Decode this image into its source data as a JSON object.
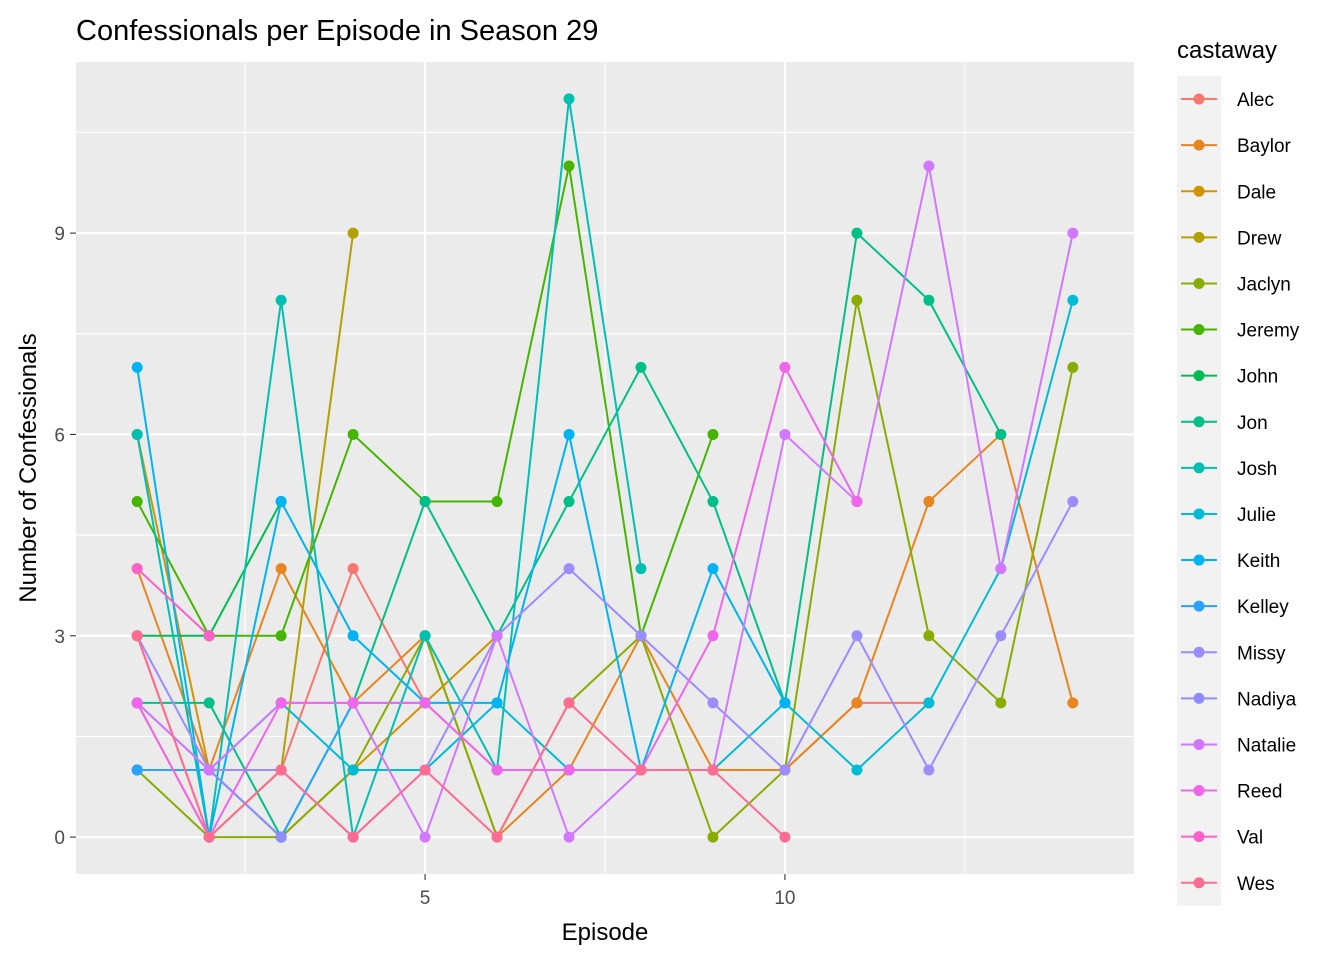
{
  "chart_data": {
    "type": "line",
    "title": "Confessionals per Episode in Season 29",
    "xlabel": "Episode",
    "ylabel": "Number of Confessionals",
    "xlim": [
      0.15,
      14.85
    ],
    "ylim": [
      -0.55,
      11.55
    ],
    "x_ticks": [
      5,
      10
    ],
    "y_ticks": [
      0,
      3,
      6,
      9
    ],
    "grid": true,
    "legend_title": "castaway",
    "legend_position": "right",
    "series": [
      {
        "name": "Alec",
        "color": "#F8766D",
        "points": [
          [
            1,
            3
          ],
          [
            2,
            0
          ],
          [
            3,
            1
          ],
          [
            4,
            4
          ],
          [
            5,
            2
          ],
          [
            6,
            1
          ],
          [
            7,
            1
          ],
          [
            8,
            1
          ],
          [
            9,
            1
          ],
          [
            10,
            1
          ],
          [
            11,
            2
          ],
          [
            12,
            2
          ]
        ]
      },
      {
        "name": "Baylor",
        "color": "#E7851E",
        "points": [
          [
            1,
            4
          ],
          [
            2,
            1
          ],
          [
            3,
            4
          ],
          [
            4,
            2
          ],
          [
            5,
            3
          ],
          [
            6,
            0
          ],
          [
            7,
            1
          ],
          [
            8,
            3
          ],
          [
            9,
            1
          ],
          [
            10,
            1
          ],
          [
            11,
            2
          ],
          [
            12,
            5
          ],
          [
            13,
            6
          ],
          [
            14,
            2
          ]
        ]
      },
      {
        "name": "Dale",
        "color": "#D09400",
        "points": [
          [
            1,
            6
          ],
          [
            2,
            1
          ],
          [
            3,
            0
          ],
          [
            4,
            1
          ],
          [
            5,
            2
          ],
          [
            6,
            3
          ]
        ]
      },
      {
        "name": "Drew",
        "color": "#B2A100",
        "points": [
          [
            1,
            2
          ],
          [
            2,
            0
          ],
          [
            3,
            1
          ],
          [
            4,
            9
          ]
        ]
      },
      {
        "name": "Jaclyn",
        "color": "#89AC00",
        "points": [
          [
            1,
            1
          ],
          [
            2,
            0
          ],
          [
            3,
            0
          ],
          [
            4,
            1
          ],
          [
            5,
            3
          ],
          [
            6,
            0
          ],
          [
            7,
            2
          ],
          [
            8,
            3
          ],
          [
            9,
            0
          ],
          [
            10,
            1
          ],
          [
            11,
            8
          ],
          [
            12,
            3
          ],
          [
            13,
            2
          ],
          [
            14,
            7
          ]
        ]
      },
      {
        "name": "Jeremy",
        "color": "#45B500",
        "points": [
          [
            1,
            5
          ],
          [
            2,
            3
          ],
          [
            3,
            3
          ],
          [
            4,
            6
          ],
          [
            5,
            5
          ],
          [
            6,
            5
          ],
          [
            7,
            10
          ],
          [
            8,
            3
          ],
          [
            9,
            6
          ]
        ]
      },
      {
        "name": "John",
        "color": "#00BC51",
        "points": [
          [
            1,
            3
          ],
          [
            2,
            3
          ],
          [
            3,
            5
          ]
        ]
      },
      {
        "name": "Jon",
        "color": "#00C087",
        "points": [
          [
            1,
            2
          ],
          [
            2,
            2
          ],
          [
            3,
            0
          ],
          [
            4,
            2
          ],
          [
            5,
            5
          ],
          [
            6,
            3
          ],
          [
            7,
            5
          ],
          [
            8,
            7
          ],
          [
            9,
            5
          ],
          [
            10,
            2
          ],
          [
            11,
            9
          ],
          [
            12,
            8
          ],
          [
            13,
            6
          ]
        ]
      },
      {
        "name": "Josh",
        "color": "#00C0B2",
        "points": [
          [
            1,
            6
          ],
          [
            2,
            0
          ],
          [
            3,
            8
          ],
          [
            4,
            0
          ],
          [
            5,
            3
          ],
          [
            6,
            1
          ],
          [
            7,
            11
          ],
          [
            8,
            4
          ]
        ]
      },
      {
        "name": "Julie",
        "color": "#00BCD6",
        "points": [
          [
            1,
            1
          ],
          [
            2,
            1
          ],
          [
            3,
            2
          ],
          [
            4,
            1
          ],
          [
            5,
            1
          ],
          [
            6,
            2
          ],
          [
            7,
            1
          ],
          [
            8,
            1
          ],
          [
            9,
            1
          ],
          [
            10,
            2
          ],
          [
            11,
            1
          ],
          [
            12,
            2
          ],
          [
            13,
            4
          ],
          [
            14,
            8
          ]
        ]
      },
      {
        "name": "Keith",
        "color": "#00B3F2",
        "points": [
          [
            1,
            7
          ],
          [
            2,
            0
          ],
          [
            3,
            5
          ],
          [
            4,
            3
          ],
          [
            5,
            2
          ],
          [
            6,
            2
          ],
          [
            7,
            6
          ],
          [
            8,
            1
          ],
          [
            9,
            4
          ],
          [
            10,
            2
          ]
        ]
      },
      {
        "name": "Kelley",
        "color": "#29A3FF",
        "points": [
          [
            1,
            1
          ],
          [
            2,
            1
          ],
          [
            3,
            0
          ],
          [
            4,
            2
          ],
          [
            5,
            2
          ]
        ]
      },
      {
        "name": "Missy",
        "color": "#9C8DFF",
        "points": [
          [
            1,
            3
          ],
          [
            2,
            1
          ],
          [
            3,
            1
          ],
          [
            4,
            0
          ],
          [
            5,
            1
          ],
          [
            6,
            3
          ],
          [
            7,
            4
          ],
          [
            8,
            3
          ],
          [
            9,
            2
          ],
          [
            10,
            1
          ],
          [
            11,
            3
          ],
          [
            12,
            1
          ],
          [
            13,
            3
          ],
          [
            14,
            5
          ]
        ]
      },
      {
        "name": "Nadiya",
        "color": "#8F8CFF",
        "points": [
          [
            1,
            2
          ],
          [
            2,
            1
          ],
          [
            3,
            0
          ]
        ]
      },
      {
        "name": "Natalie",
        "color": "#D277FF",
        "points": [
          [
            1,
            2
          ],
          [
            2,
            1
          ],
          [
            3,
            2
          ],
          [
            4,
            2
          ],
          [
            5,
            0
          ],
          [
            6,
            3
          ],
          [
            7,
            0
          ],
          [
            8,
            1
          ],
          [
            9,
            1
          ],
          [
            10,
            6
          ],
          [
            11,
            5
          ],
          [
            12,
            10
          ],
          [
            13,
            4
          ],
          [
            14,
            9
          ]
        ]
      },
      {
        "name": "Reed",
        "color": "#F066EA",
        "points": [
          [
            1,
            2
          ],
          [
            2,
            0
          ],
          [
            3,
            2
          ],
          [
            4,
            2
          ],
          [
            5,
            2
          ],
          [
            6,
            1
          ],
          [
            7,
            1
          ],
          [
            8,
            1
          ],
          [
            9,
            3
          ],
          [
            10,
            7
          ],
          [
            11,
            5
          ]
        ]
      },
      {
        "name": "Val",
        "color": "#FC61C9",
        "points": [
          [
            1,
            4
          ],
          [
            2,
            3
          ]
        ]
      },
      {
        "name": "Wes",
        "color": "#FF6C91",
        "points": [
          [
            1,
            3
          ],
          [
            2,
            0
          ],
          [
            3,
            1
          ],
          [
            4,
            0
          ],
          [
            5,
            1
          ],
          [
            6,
            0
          ],
          [
            7,
            2
          ],
          [
            8,
            1
          ],
          [
            9,
            1
          ],
          [
            10,
            0
          ]
        ]
      }
    ]
  }
}
